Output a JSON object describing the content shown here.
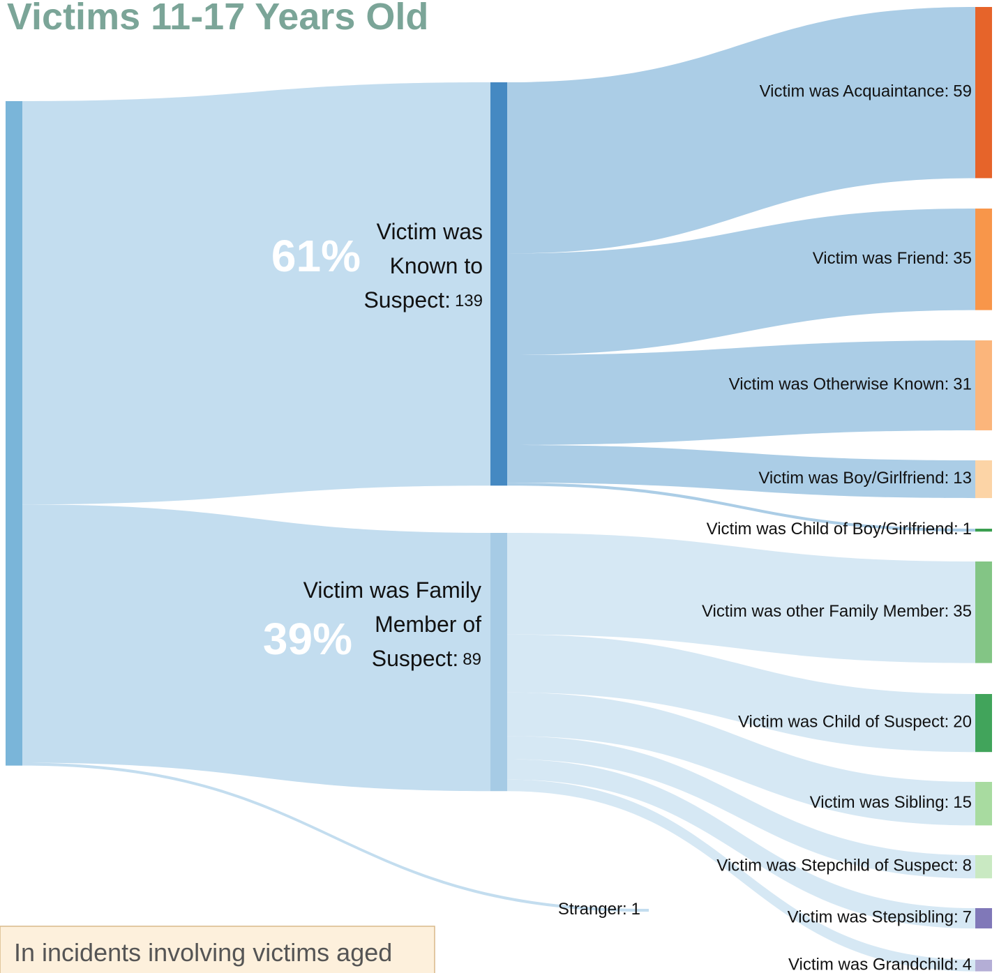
{
  "chart_data": {
    "type": "sankey",
    "title": "Victims 11-17 Years Old",
    "note": "In incidents involving victims aged",
    "nodes": [
      {
        "color": "#7ab5d9"
      },
      {
        "label": [
          "Victim was",
          "Known to",
          "Suspect:"
        ],
        "value": 139,
        "share": 61,
        "share_label": "61%",
        "parent": 0,
        "color": "#4589c2",
        "link_color": "#c3ddef"
      },
      {
        "label": [
          "Victim was Family",
          "Member of",
          "Suspect:"
        ],
        "value": 89,
        "share": 39,
        "share_label": "39%",
        "parent": 0,
        "color": "#a6cbe5",
        "link_color": "#c3ddef"
      },
      {
        "label": "Stranger:",
        "value": 1,
        "parent": 0,
        "color": "#c3ddef",
        "link_color": "#c3ddef"
      },
      {
        "label": "Victim was Acquaintance:",
        "value": 59,
        "parent": 1,
        "color": "#e6642a",
        "link_color": "#abcde6"
      },
      {
        "label": "Victim was Friend:",
        "value": 35,
        "parent": 1,
        "color": "#f8964a",
        "link_color": "#abcde6"
      },
      {
        "label": "Victim was Otherwise Known:",
        "value": 31,
        "parent": 1,
        "color": "#fbb57b",
        "link_color": "#abcde6"
      },
      {
        "label": "Victim was Boy/Girlfriend:",
        "value": 13,
        "parent": 1,
        "color": "#fcd4a6",
        "link_color": "#abcde6"
      },
      {
        "label": "Victim was Child of Boy/Girlfriend:",
        "value": 1,
        "parent": 1,
        "color": "#3a9e50",
        "link_color": "#abcde6"
      },
      {
        "label": "Victim was other Family Member:",
        "value": 35,
        "parent": 2,
        "color": "#83c585",
        "link_color": "#d6e8f4"
      },
      {
        "label": "Victim was Child of Suspect:",
        "value": 20,
        "parent": 2,
        "color": "#41a45b",
        "link_color": "#d6e8f4"
      },
      {
        "label": "Victim was Sibling:",
        "value": 15,
        "parent": 2,
        "color": "#a8dba0",
        "link_color": "#d6e8f4"
      },
      {
        "label": "Victim was Stepchild of Suspect:",
        "value": 8,
        "parent": 2,
        "color": "#c9e9c2",
        "link_color": "#d6e8f4"
      },
      {
        "label": "Victim was Stepsibling:",
        "value": 7,
        "parent": 2,
        "color": "#8078b8",
        "link_color": "#d6e8f4"
      },
      {
        "label": "Victim was Grandchild:",
        "value": 4,
        "parent": 2,
        "color": "#b4aed6",
        "link_color": "#d6e8f4"
      }
    ]
  }
}
